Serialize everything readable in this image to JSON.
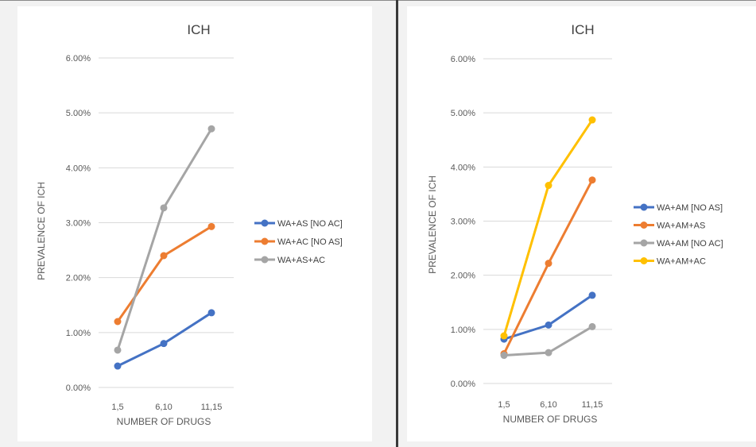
{
  "colors": {
    "blue": "#4472c4",
    "orange": "#ed7d31",
    "gray": "#a5a5a5",
    "yellow": "#ffc000",
    "gridline": "#d9d9d9"
  },
  "chart_data": [
    {
      "type": "line",
      "title": "ICH",
      "xlabel": "NUMBER OF DRUGS",
      "ylabel": "PREVALENCE OF ICH",
      "categories": [
        "1,5",
        "6,10",
        "11,15"
      ],
      "ylim": [
        0,
        0.06
      ],
      "yticks": [
        "0.00%",
        "1.00%",
        "2.00%",
        "3.00%",
        "4.00%",
        "5.00%",
        "6.00%"
      ],
      "grid": true,
      "legend_position": "right",
      "series": [
        {
          "name": "WA+AS [NO AC]",
          "color": "#4472c4",
          "values": [
            0.0039,
            0.008,
            0.0136
          ]
        },
        {
          "name": "WA+AC [NO AS]",
          "color": "#ed7d31",
          "values": [
            0.012,
            0.024,
            0.0293
          ]
        },
        {
          "name": "WA+AS+AC",
          "color": "#a5a5a5",
          "values": [
            0.0068,
            0.0327,
            0.0471
          ]
        }
      ]
    },
    {
      "type": "line",
      "title": "ICH",
      "xlabel": "NUMBER OF DRUGS",
      "ylabel": "PREVALENCE OF ICH",
      "categories": [
        "1,5",
        "6,10",
        "11,15"
      ],
      "ylim": [
        0,
        0.06
      ],
      "yticks": [
        "0.00%",
        "1.00%",
        "2.00%",
        "3.00%",
        "4.00%",
        "5.00%",
        "6.00%"
      ],
      "grid": true,
      "legend_position": "right",
      "series": [
        {
          "name": "WA+AM [NO AS]",
          "color": "#4472c4",
          "values": [
            0.0082,
            0.0108,
            0.0163
          ]
        },
        {
          "name": "WA+AM+AS",
          "color": "#ed7d31",
          "values": [
            0.0055,
            0.0222,
            0.0376
          ]
        },
        {
          "name": "WA+AM [NO AC]",
          "color": "#a5a5a5",
          "values": [
            0.0052,
            0.0057,
            0.0105
          ]
        },
        {
          "name": "WA+AM+AC",
          "color": "#ffc000",
          "values": [
            0.0088,
            0.0366,
            0.0487
          ]
        }
      ]
    }
  ]
}
